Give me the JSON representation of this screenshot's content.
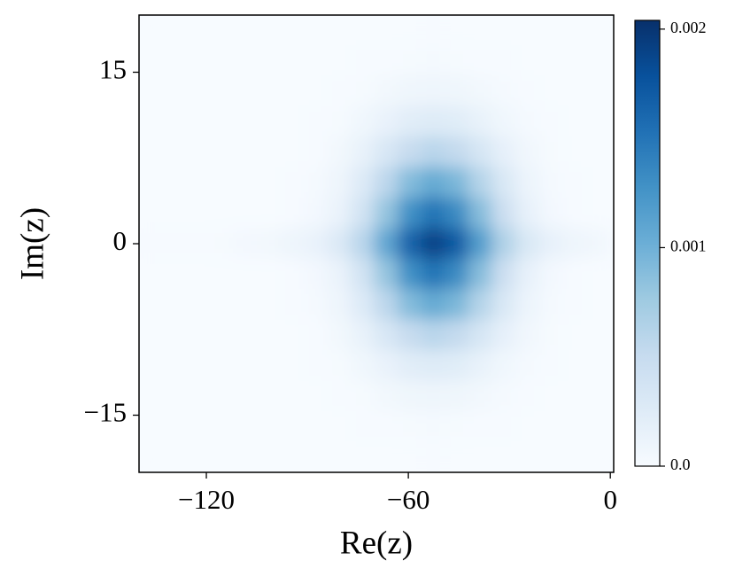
{
  "chart_data": {
    "type": "heatmap",
    "x_label": "Re(z)",
    "y_label": "Im(z)",
    "xlim": [
      -140,
      1
    ],
    "ylim": [
      -20,
      20
    ],
    "xticks": [
      {
        "value": -120,
        "label": "−120"
      },
      {
        "value": -60,
        "label": "−60"
      },
      0
    ],
    "yticks": [
      {
        "value": -15,
        "label": "−15"
      },
      0,
      15
    ],
    "clim": [
      0,
      0.00204
    ],
    "cticks": [
      {
        "value": 0,
        "label": "0.0"
      },
      0.001,
      0.002
    ],
    "colormap": [
      "#f7fbff",
      "#deebf7",
      "#c6dbef",
      "#9ecae1",
      "#6baed6",
      "#4292c6",
      "#2171b5",
      "#08519c",
      "#08306b"
    ],
    "x_edges": [
      -140,
      -133,
      -126,
      -119,
      -112,
      -105,
      -98,
      -91,
      -84,
      -77,
      -70,
      -63,
      -56,
      -49,
      -42,
      -35,
      -28,
      -21,
      -14,
      -7,
      0
    ],
    "y_edges": [
      20,
      17.333,
      14.667,
      12,
      9.333,
      6.667,
      4,
      1.333,
      -1.333,
      -4,
      -6.667,
      -9.333,
      -12,
      -14.667,
      -17.333,
      -20
    ],
    "z": [
      [
        0,
        0,
        0,
        0,
        0,
        0,
        0,
        0,
        0,
        0,
        0,
        0,
        1e-05,
        0,
        0,
        0,
        0,
        0,
        0,
        0
      ],
      [
        0,
        0,
        0,
        0,
        0,
        0,
        0,
        0,
        0,
        1e-05,
        1e-05,
        2e-05,
        3e-05,
        2e-05,
        1e-05,
        1e-05,
        0,
        0,
        0,
        0
      ],
      [
        0,
        0,
        0,
        0,
        0,
        0,
        0,
        0,
        1e-05,
        2e-05,
        5e-05,
        8e-05,
        9e-05,
        8e-05,
        5e-05,
        3e-05,
        1e-05,
        0,
        0,
        0
      ],
      [
        0,
        0,
        0,
        0,
        0,
        0,
        0,
        1e-05,
        2e-05,
        7e-05,
        0.00014,
        0.00022,
        0.00026,
        0.00023,
        0.00015,
        7e-05,
        3e-05,
        1e-05,
        0,
        0
      ],
      [
        0,
        0,
        0,
        0,
        0,
        0,
        0,
        1e-05,
        5e-05,
        0.00015,
        0.00032,
        0.0005,
        0.00059,
        0.00052,
        0.00034,
        0.00017,
        6e-05,
        2e-05,
        0,
        0
      ],
      [
        0,
        0,
        0,
        0,
        0,
        0,
        1e-05,
        3e-05,
        9e-05,
        0.00027,
        0.00057,
        0.0009,
        0.00106,
        0.00094,
        0.00062,
        0.00031,
        0.00011,
        3e-05,
        1e-05,
        0
      ],
      [
        0,
        0,
        0,
        0,
        0,
        0,
        1e-05,
        4e-05,
        0.00013,
        0.00038,
        0.00081,
        0.00128,
        0.00151,
        0.00133,
        0.00088,
        0.00044,
        0.00016,
        4e-05,
        1e-05,
        0
      ],
      [
        1e-05,
        1e-05,
        1e-05,
        2e-05,
        4e-05,
        5e-05,
        9e-05,
        0.00014,
        0.00028,
        0.00059,
        0.00109,
        0.00164,
        0.0019,
        0.0017,
        0.00117,
        0.00065,
        0.00031,
        0.00016,
        9e-05,
        6e-05
      ],
      [
        0,
        0,
        0,
        0,
        0,
        0,
        1e-05,
        4e-05,
        0.00013,
        0.00038,
        0.00081,
        0.00128,
        0.00151,
        0.00133,
        0.00088,
        0.00044,
        0.00016,
        4e-05,
        1e-05,
        0
      ],
      [
        0,
        0,
        0,
        0,
        0,
        0,
        1e-05,
        3e-05,
        9e-05,
        0.00027,
        0.00057,
        0.0009,
        0.00106,
        0.00094,
        0.00062,
        0.00031,
        0.00011,
        3e-05,
        1e-05,
        0
      ],
      [
        0,
        0,
        0,
        0,
        0,
        0,
        0,
        1e-05,
        5e-05,
        0.00015,
        0.00032,
        0.0005,
        0.00059,
        0.00052,
        0.00034,
        0.00017,
        6e-05,
        2e-05,
        0,
        0
      ],
      [
        0,
        0,
        0,
        0,
        0,
        0,
        0,
        1e-05,
        2e-05,
        7e-05,
        0.00014,
        0.00022,
        0.00026,
        0.00023,
        0.00015,
        7e-05,
        3e-05,
        1e-05,
        0,
        0
      ],
      [
        0,
        0,
        0,
        0,
        0,
        0,
        0,
        0,
        1e-05,
        2e-05,
        5e-05,
        8e-05,
        9e-05,
        8e-05,
        5e-05,
        3e-05,
        1e-05,
        0,
        0,
        0
      ],
      [
        0,
        0,
        0,
        0,
        0,
        0,
        0,
        0,
        0,
        1e-05,
        1e-05,
        2e-05,
        3e-05,
        2e-05,
        1e-05,
        1e-05,
        0,
        0,
        0,
        0
      ],
      [
        0,
        0,
        0,
        0,
        0,
        0,
        0,
        0,
        0,
        0,
        0,
        0,
        1e-05,
        0,
        0,
        0,
        0,
        0,
        0,
        0
      ]
    ]
  }
}
